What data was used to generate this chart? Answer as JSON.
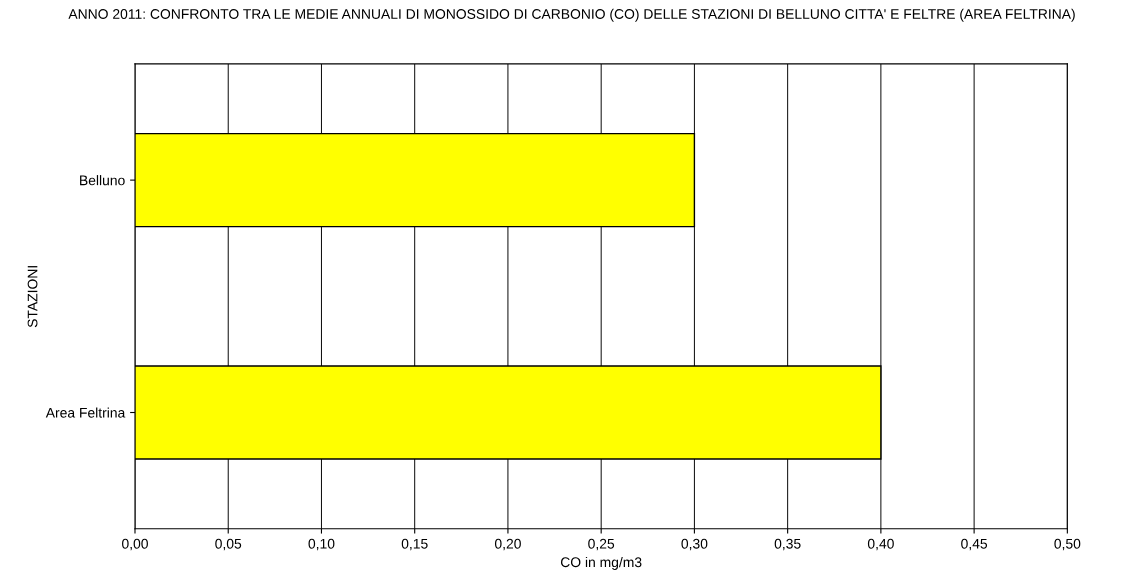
{
  "chart_data": {
    "type": "bar",
    "orientation": "horizontal",
    "title": "ANNO 2011: CONFRONTO TRA LE MEDIE ANNUALI DI MONOSSIDO DI CARBONIO (CO) DELLE STAZIONI DI BELLUNO CITTA' E FELTRE (AREA FELTRINA)",
    "xlabel": "CO in mg/m3",
    "ylabel": "STAZIONI",
    "categories": [
      "Belluno",
      "Area Feltrina"
    ],
    "values": [
      0.3,
      0.4
    ],
    "color": "#ffff00",
    "xlim": [
      0,
      0.5
    ],
    "xticks": [
      {
        "value": 0,
        "label": "0,00"
      },
      {
        "value": 0.05,
        "label": "0,05"
      },
      {
        "value": 0.1,
        "label": "0,10"
      },
      {
        "value": 0.15,
        "label": "0,15"
      },
      {
        "value": 0.2,
        "label": "0,20"
      },
      {
        "value": 0.25,
        "label": "0,25"
      },
      {
        "value": 0.3,
        "label": "0,30"
      },
      {
        "value": 0.35,
        "label": "0,35"
      },
      {
        "value": 0.4,
        "label": "0,40"
      },
      {
        "value": 0.45,
        "label": "0,45"
      },
      {
        "value": 0.5,
        "label": "0,50"
      }
    ],
    "grid": "x"
  }
}
